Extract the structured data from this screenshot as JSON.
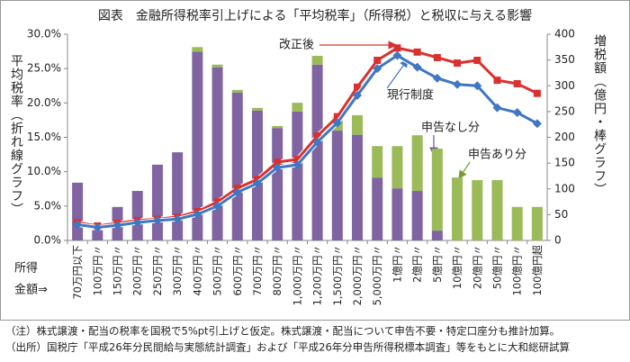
{
  "chart_data": {
    "type": "combo",
    "title": "図表　金融所得税率引上げによる「平均税率」（所得税）と税収に与える影響",
    "ylabel": "平均税率（折れ線グラフ）",
    "y2label": "増税額（億円・棒グラフ）",
    "xlabel": [
      "所得",
      "金額⇒"
    ],
    "categories": [
      "70万円以下",
      "100万円〃",
      "150万円〃",
      "200万円〃",
      "250万円〃",
      "300万円〃",
      "400万円〃",
      "500万円〃",
      "600万円〃",
      "700万円〃",
      "800万円〃",
      "1,000万円〃",
      "1,200万円〃",
      "1,500万円〃",
      "2,000万円〃",
      "5,000万円〃",
      "1億円〃",
      "2億円〃",
      "5億円〃",
      "10億円〃",
      "20億円〃",
      "50億円〃",
      "100億円〃",
      "100億円超"
    ],
    "ylim": [
      0,
      30
    ],
    "yticks": [
      {
        "value": 0,
        "label": "0.0%"
      },
      {
        "value": 5,
        "label": "5.0%"
      },
      {
        "value": 10,
        "label": "10.0%"
      },
      {
        "value": 15,
        "label": "15.0%"
      },
      {
        "value": 20,
        "label": "20.0%"
      },
      {
        "value": 25,
        "label": "25.0%"
      },
      {
        "value": 30,
        "label": "30.0%"
      }
    ],
    "y2lim": [
      0,
      400
    ],
    "y2ticks": [
      0,
      50,
      100,
      150,
      200,
      250,
      300,
      350,
      400
    ],
    "series": [
      {
        "name": "申告なし分",
        "type": "bar",
        "axis": "y2",
        "color": "#8064a2",
        "values": [
          112,
          20,
          65,
          96,
          147,
          171,
          366,
          336,
          287,
          252,
          218,
          250,
          341,
          213,
          205,
          122,
          101,
          96,
          19,
          0,
          0,
          0,
          0,
          0
        ]
      },
      {
        "name": "申告あり分",
        "type": "bar",
        "axis": "y2",
        "color": "#9bbb59",
        "values": [
          0,
          0,
          0,
          0,
          0,
          0,
          9,
          5,
          5,
          5,
          4,
          17,
          17,
          26,
          38,
          61,
          82,
          108,
          159,
          122,
          117,
          117,
          65,
          65
        ]
      },
      {
        "name": "改正後",
        "type": "line",
        "color": "#d9312f",
        "marker": "square",
        "values": [
          2.6,
          2.1,
          2.5,
          2.9,
          3.1,
          3.4,
          4.2,
          5.6,
          7.6,
          8.9,
          11.4,
          11.8,
          15.2,
          18.0,
          22.3,
          26.2,
          28.0,
          27.4,
          26.6,
          25.8,
          26.2,
          23.3,
          22.8,
          21.4
        ]
      },
      {
        "name": "現行制度",
        "type": "line",
        "color": "#3f77c3",
        "marker": "diamond",
        "values": [
          2.3,
          1.9,
          2.2,
          2.6,
          2.9,
          3.1,
          3.8,
          5.0,
          7.0,
          8.3,
          10.6,
          11.0,
          14.3,
          17.1,
          21.1,
          25.0,
          26.9,
          25.2,
          23.6,
          22.7,
          22.5,
          19.3,
          18.6,
          17.0
        ]
      }
    ],
    "notes": [
      "（注）株式譲渡・配当の税率を国税で5%pt引上げと仮定。株式譲渡・配当について申告不要・特定口座分も推計加算。",
      "（出所）国税庁「平成26年分民間給与実態統計調査」および「平成26年分申告所得税標本調査」等をもとに大和総研試算"
    ]
  }
}
